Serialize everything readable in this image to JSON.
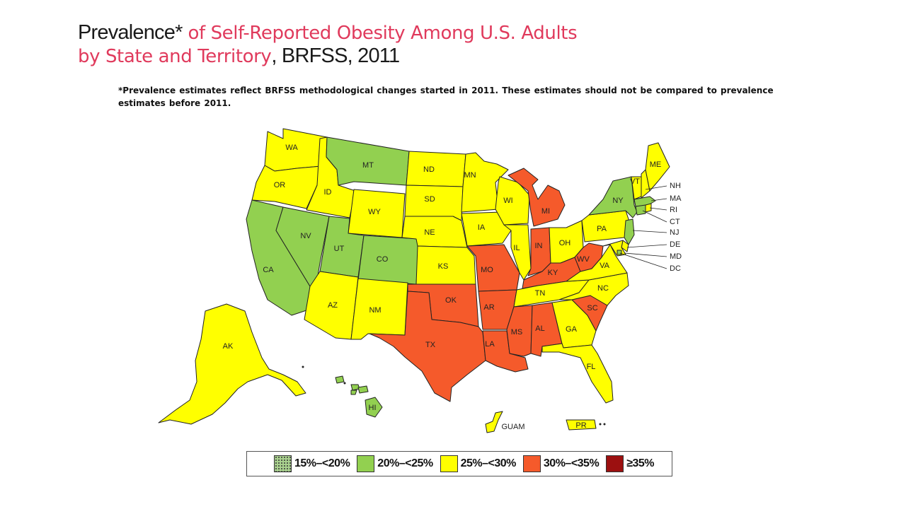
{
  "title": {
    "part1": "Prevalence*",
    "part2": " of Self-Reported Obesity Among U.S. Adults",
    "part3": "by State and Territory",
    "part4": ", BRFSS, 2011"
  },
  "footnote": "*Prevalence estimates reflect BRFSS methodological changes started in 2011. These estimates should not be compared to prevalence estimates before 2011.",
  "colors": {
    "c15": "#a9d18e",
    "c20": "#92d050",
    "c25": "#ffff00",
    "c30": "#f55a2b",
    "c35": "#9c1010"
  },
  "legend": [
    {
      "label": "15%–<20%",
      "cat": "c15",
      "pattern": "dotted"
    },
    {
      "label": "20%–<25%",
      "cat": "c20"
    },
    {
      "label": "25%–<30%",
      "cat": "c25"
    },
    {
      "label": "30%–<35%",
      "cat": "c30"
    },
    {
      "label": "≥35%",
      "cat": "c35"
    }
  ],
  "states": {
    "WA": {
      "cat": "c25"
    },
    "OR": {
      "cat": "c25"
    },
    "CA": {
      "cat": "c20"
    },
    "NV": {
      "cat": "c20"
    },
    "ID": {
      "cat": "c25"
    },
    "MT": {
      "cat": "c20"
    },
    "WY": {
      "cat": "c25"
    },
    "UT": {
      "cat": "c20"
    },
    "CO": {
      "cat": "c20"
    },
    "AZ": {
      "cat": "c25"
    },
    "NM": {
      "cat": "c25"
    },
    "ND": {
      "cat": "c25"
    },
    "SD": {
      "cat": "c25"
    },
    "NE": {
      "cat": "c25"
    },
    "KS": {
      "cat": "c25"
    },
    "OK": {
      "cat": "c30"
    },
    "TX": {
      "cat": "c30"
    },
    "MN": {
      "cat": "c25"
    },
    "IA": {
      "cat": "c25"
    },
    "MO": {
      "cat": "c30"
    },
    "AR": {
      "cat": "c30"
    },
    "LA": {
      "cat": "c30"
    },
    "WI": {
      "cat": "c25"
    },
    "IL": {
      "cat": "c25"
    },
    "MI": {
      "cat": "c30"
    },
    "IN": {
      "cat": "c30"
    },
    "OH": {
      "cat": "c25"
    },
    "KY": {
      "cat": "c30"
    },
    "TN": {
      "cat": "c25"
    },
    "MS": {
      "cat": "c30"
    },
    "AL": {
      "cat": "c30"
    },
    "GA": {
      "cat": "c25"
    },
    "FL": {
      "cat": "c25"
    },
    "SC": {
      "cat": "c30"
    },
    "NC": {
      "cat": "c25"
    },
    "VA": {
      "cat": "c25"
    },
    "WV": {
      "cat": "c30"
    },
    "PA": {
      "cat": "c25"
    },
    "NY": {
      "cat": "c20"
    },
    "VT": {
      "cat": "c25"
    },
    "NH": {
      "cat": "c25"
    },
    "ME": {
      "cat": "c25"
    },
    "MA": {
      "cat": "c20"
    },
    "RI": {
      "cat": "c25"
    },
    "CT": {
      "cat": "c20"
    },
    "NJ": {
      "cat": "c20"
    },
    "DE": {
      "cat": "c25"
    },
    "MD": {
      "cat": "c25"
    },
    "DC": {
      "cat": "c20"
    },
    "AK": {
      "cat": "c25"
    },
    "HI": {
      "cat": "c20"
    },
    "GUAM": {
      "cat": "c25"
    },
    "PR": {
      "cat": "c25"
    }
  },
  "labels": {
    "WA": "WA",
    "OR": "OR",
    "CA": "CA",
    "NV": "NV",
    "ID": "ID",
    "MT": "MT",
    "WY": "WY",
    "UT": "UT",
    "CO": "CO",
    "AZ": "AZ",
    "NM": "NM",
    "ND": "ND",
    "SD": "SD",
    "NE": "NE",
    "KS": "KS",
    "OK": "OK",
    "TX": "TX",
    "MN": "MN",
    "IA": "IA",
    "MO": "MO",
    "AR": "AR",
    "LA": "LA",
    "WI": "WI",
    "IL": "IL",
    "MI": "MI",
    "IN": "IN",
    "OH": "OH",
    "KY": "KY",
    "TN": "TN",
    "MS": "MS",
    "AL": "AL",
    "GA": "GA",
    "FL": "FL",
    "SC": "SC",
    "NC": "NC",
    "VA": "VA",
    "WV": "WV",
    "PA": "PA",
    "NY": "NY",
    "VT": "VT",
    "ME": "ME",
    "AK": "AK",
    "HI": "HI",
    "GUAM": "GUAM",
    "PR": "PR",
    "NH": "NH",
    "MA": "MA",
    "RI": "RI",
    "CT": "CT",
    "NJ": "NJ",
    "DE": "DE",
    "MD": "MD",
    "DC": "DC"
  }
}
